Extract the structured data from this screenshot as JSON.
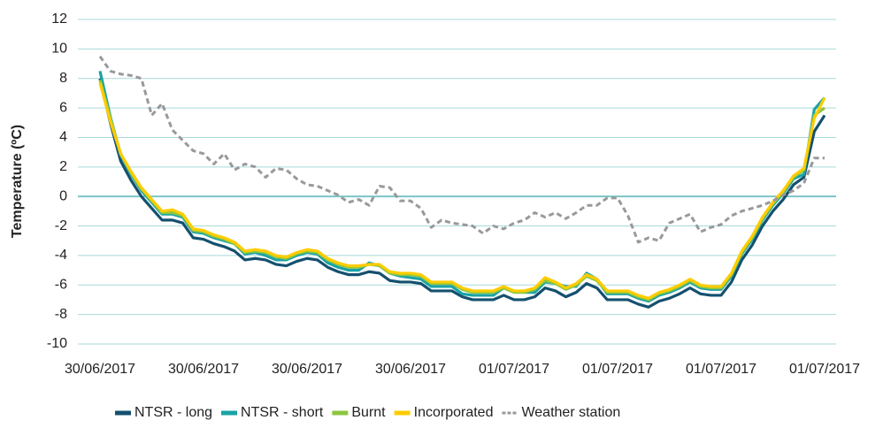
{
  "chart_data": {
    "type": "line",
    "y_label": "Temperature (ºC)",
    "categories": [
      "30/06/2017",
      null,
      null,
      null,
      null,
      null,
      null,
      null,
      null,
      null,
      "30/06/2017",
      null,
      null,
      null,
      null,
      null,
      null,
      null,
      null,
      null,
      "30/06/2017",
      null,
      null,
      null,
      null,
      null,
      null,
      null,
      null,
      null,
      "30/06/2017",
      null,
      null,
      null,
      null,
      null,
      null,
      null,
      null,
      null,
      "01/07/2017",
      null,
      null,
      null,
      null,
      null,
      null,
      null,
      null,
      null,
      "01/07/2017",
      null,
      null,
      null,
      null,
      null,
      null,
      null,
      null,
      null,
      "01/07/2017",
      null,
      null,
      null,
      null,
      null,
      null,
      null,
      null,
      null,
      "01/07/2017"
    ],
    "ylim": [
      -10,
      12
    ],
    "yticks": [
      -10,
      -8,
      -6,
      -4,
      -2,
      0,
      2,
      4,
      6,
      8,
      10,
      12
    ],
    "grid": true,
    "legend": "bottom",
    "series": [
      {
        "name": "NTSR - long",
        "color": "#14506f",
        "dash": false,
        "values": [
          8.0,
          5.0,
          2.4,
          1.1,
          0.0,
          -0.8,
          -1.6,
          -1.6,
          -1.8,
          -2.8,
          -2.9,
          -3.2,
          -3.4,
          -3.7,
          -4.3,
          -4.2,
          -4.3,
          -4.6,
          -4.7,
          -4.4,
          -4.2,
          -4.3,
          -4.8,
          -5.1,
          -5.3,
          -5.3,
          -5.1,
          -5.2,
          -5.7,
          -5.8,
          -5.8,
          -5.9,
          -6.4,
          -6.4,
          -6.4,
          -6.8,
          -7.0,
          -7.0,
          -7.0,
          -6.7,
          -7.0,
          -7.0,
          -6.8,
          -6.2,
          -6.4,
          -6.8,
          -6.5,
          -5.9,
          -6.2,
          -7.0,
          -7.0,
          -7.0,
          -7.3,
          -7.5,
          -7.1,
          -6.9,
          -6.6,
          -6.2,
          -6.6,
          -6.7,
          -6.7,
          -5.8,
          -4.3,
          -3.3,
          -2.0,
          -1.0,
          -0.2,
          0.8,
          1.3,
          4.4,
          5.5
        ]
      },
      {
        "name": "NTSR - short",
        "color": "#1aa3a6",
        "dash": false,
        "values": [
          8.5,
          5.4,
          2.8,
          1.5,
          0.4,
          -0.4,
          -1.2,
          -1.2,
          -1.4,
          -2.4,
          -2.5,
          -2.8,
          -3.0,
          -3.2,
          -3.9,
          -3.8,
          -4.0,
          -4.3,
          -4.3,
          -4.0,
          -3.8,
          -3.9,
          -4.5,
          -4.8,
          -5.0,
          -5.0,
          -4.5,
          -4.7,
          -5.2,
          -5.4,
          -5.5,
          -5.6,
          -6.1,
          -6.1,
          -6.1,
          -6.6,
          -6.7,
          -6.7,
          -6.7,
          -6.2,
          -6.4,
          -6.5,
          -6.5,
          -5.8,
          -5.9,
          -6.1,
          -6.1,
          -5.2,
          -5.6,
          -6.6,
          -6.6,
          -6.6,
          -6.9,
          -7.1,
          -6.7,
          -6.5,
          -6.2,
          -5.8,
          -6.2,
          -6.3,
          -6.3,
          -5.4,
          -3.9,
          -2.9,
          -1.6,
          -0.6,
          0.2,
          1.2,
          1.5,
          5.9,
          6.7
        ]
      },
      {
        "name": "Burnt",
        "color": "#8dc63f",
        "dash": false,
        "values": [
          7.9,
          5.3,
          2.9,
          1.6,
          0.5,
          -0.3,
          -1.1,
          -1.1,
          -1.3,
          -2.3,
          -2.4,
          -2.7,
          -2.9,
          -3.2,
          -3.8,
          -3.7,
          -3.8,
          -4.1,
          -4.2,
          -3.9,
          -3.7,
          -3.8,
          -4.3,
          -4.6,
          -4.8,
          -4.8,
          -4.6,
          -4.7,
          -5.2,
          -5.3,
          -5.3,
          -5.4,
          -5.9,
          -5.9,
          -5.9,
          -6.3,
          -6.5,
          -6.5,
          -6.5,
          -6.2,
          -6.5,
          -6.5,
          -6.3,
          -5.7,
          -5.9,
          -6.3,
          -6.0,
          -5.4,
          -5.7,
          -6.5,
          -6.5,
          -6.5,
          -6.8,
          -7.0,
          -6.6,
          -6.4,
          -6.1,
          -5.7,
          -6.1,
          -6.2,
          -6.2,
          -5.3,
          -3.8,
          -2.8,
          -1.5,
          -0.5,
          0.3,
          1.3,
          1.8,
          5.5,
          6.0
        ]
      },
      {
        "name": "Incorporated",
        "color": "#ffcc00",
        "dash": false,
        "values": [
          7.7,
          5.1,
          2.9,
          1.7,
          0.6,
          -0.2,
          -1.0,
          -0.9,
          -1.2,
          -2.2,
          -2.3,
          -2.6,
          -2.8,
          -3.1,
          -3.7,
          -3.6,
          -3.7,
          -4.0,
          -4.1,
          -3.8,
          -3.6,
          -3.7,
          -4.2,
          -4.5,
          -4.7,
          -4.7,
          -4.6,
          -4.6,
          -5.1,
          -5.2,
          -5.2,
          -5.3,
          -5.8,
          -5.8,
          -5.8,
          -6.2,
          -6.4,
          -6.4,
          -6.4,
          -6.1,
          -6.4,
          -6.4,
          -6.2,
          -5.5,
          -5.8,
          -6.2,
          -5.9,
          -5.3,
          -5.6,
          -6.4,
          -6.4,
          -6.4,
          -6.7,
          -6.9,
          -6.5,
          -6.3,
          -6.0,
          -5.6,
          -6.0,
          -6.1,
          -6.1,
          -5.2,
          -3.7,
          -2.7,
          -1.4,
          -0.4,
          0.4,
          1.4,
          1.9,
          5.3,
          6.7
        ]
      },
      {
        "name": "Weather station",
        "color": "#999999",
        "dash": true,
        "values": [
          9.5,
          8.5,
          8.3,
          8.2,
          8.0,
          5.5,
          6.3,
          4.5,
          3.8,
          3.1,
          2.9,
          2.2,
          2.9,
          1.8,
          2.2,
          2.0,
          1.3,
          1.9,
          1.8,
          1.2,
          0.8,
          0.7,
          0.4,
          0.1,
          -0.4,
          -0.2,
          -0.6,
          0.7,
          0.6,
          -0.3,
          -0.3,
          -0.8,
          -2.1,
          -1.6,
          -1.8,
          -1.9,
          -2.0,
          -2.5,
          -2.0,
          -2.2,
          -1.8,
          -1.6,
          -1.1,
          -1.4,
          -1.1,
          -1.5,
          -1.1,
          -0.6,
          -0.6,
          -0.1,
          -0.1,
          -1.3,
          -3.1,
          -2.8,
          -3.0,
          -1.8,
          -1.5,
          -1.2,
          -2.4,
          -2.1,
          -1.9,
          -1.3,
          -1.0,
          -0.8,
          -0.6,
          -0.3,
          0.1,
          0.4,
          0.9,
          2.6,
          2.6
        ]
      }
    ]
  }
}
